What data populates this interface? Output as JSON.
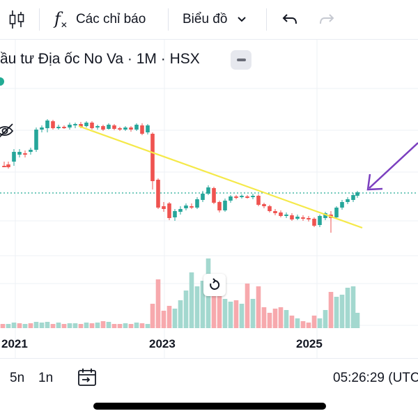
{
  "toolbar": {
    "indicators_label": "Các chỉ báo",
    "chart_type_label": "Biểu đồ",
    "icons": [
      "candles-icon",
      "fx-icon",
      "chevron-down-icon",
      "undo-icon",
      "redo-icon"
    ]
  },
  "symbol": {
    "title": "ầu tư Địa ốc No Va · 1M · HSX"
  },
  "chart_data": {
    "type": "candlestick",
    "interval": "1M",
    "x_tick_labels": [
      "2021",
      "2023",
      "2025"
    ],
    "notes": "Monthly candlesticks with volume bars; yellow trendline drawn from peak down to breakout; purple arrow pointing at latest candle."
  },
  "bottom": {
    "range_5y": "5n",
    "range_1y": "1n",
    "clock": "05:26:29 (UTC"
  },
  "colors": {
    "up": "#26a69a",
    "down": "#ef5350",
    "trendline": "#f5e94a",
    "arrow": "#7b3fbf"
  }
}
